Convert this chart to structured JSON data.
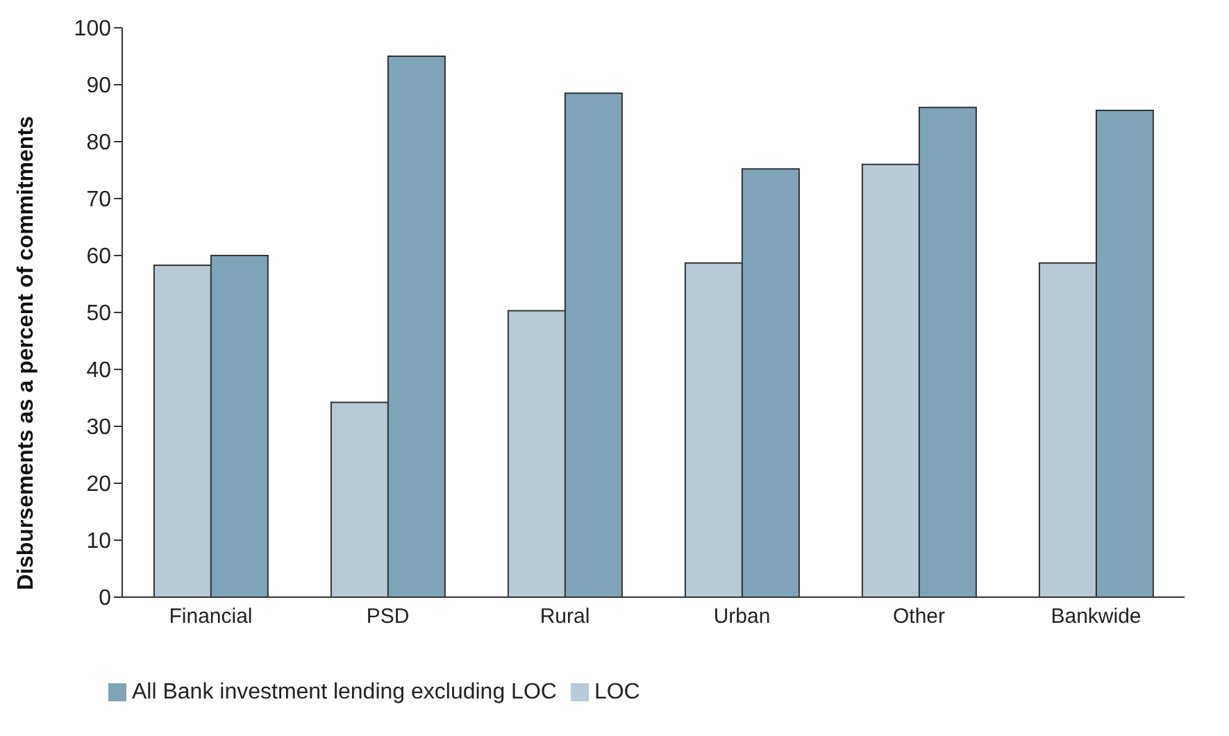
{
  "chart_data": {
    "type": "bar",
    "ylabel": "Disbursements as a percent of commitments",
    "categories": [
      "Financial",
      "PSD",
      "Rural",
      "Urban",
      "Other",
      "Bankwide"
    ],
    "series": [
      {
        "name": "LOC",
        "color": "#b8cad6",
        "values": [
          58.3,
          34.2,
          50.3,
          58.7,
          76,
          58.7
        ]
      },
      {
        "name": "All Bank investment lending excluding LOC",
        "color": "#7fa3b7",
        "values": [
          60,
          95,
          88.5,
          75.2,
          86,
          85.5
        ]
      }
    ],
    "ylim": [
      0,
      100
    ],
    "yticks": [
      0,
      10,
      20,
      30,
      40,
      50,
      60,
      70,
      80,
      90,
      100
    ],
    "grid": false,
    "legend": "bottom left"
  }
}
